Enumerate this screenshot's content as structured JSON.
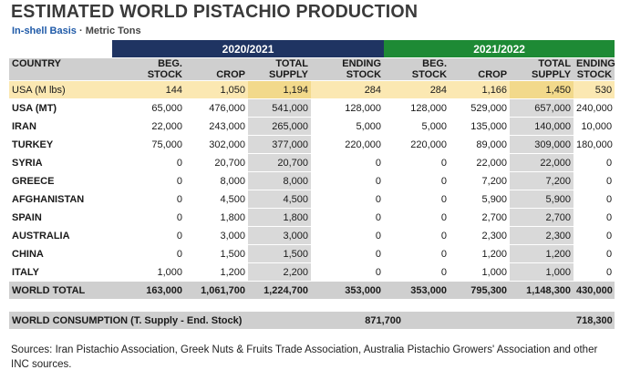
{
  "title": "ESTIMATED WORLD PISTACHIO PRODUCTION",
  "subtitle_basis": "In-shell Basis",
  "subtitle_sep": " · ",
  "subtitle_units": "Metric Tons",
  "year1": "2020/2021",
  "year2": "2021/2022",
  "headers": {
    "country": "COUNTRY",
    "beg_stock": [
      "BEG.",
      "STOCK"
    ],
    "crop": "CROP",
    "total_supply": [
      "TOTAL",
      "SUPPLY"
    ],
    "ending_stock": [
      "ENDING",
      "STOCK"
    ]
  },
  "rows": [
    {
      "country": "USA (M lbs)",
      "v": [
        "144",
        "1,050",
        "1,194",
        "284",
        "284",
        "1,166",
        "1,450",
        "530"
      ]
    },
    {
      "country": "USA (MT)",
      "v": [
        "65,000",
        "476,000",
        "541,000",
        "128,000",
        "128,000",
        "529,000",
        "657,000",
        "240,000"
      ]
    },
    {
      "country": "IRAN",
      "v": [
        "22,000",
        "243,000",
        "265,000",
        "5,000",
        "5,000",
        "135,000",
        "140,000",
        "10,000"
      ]
    },
    {
      "country": "TURKEY",
      "v": [
        "75,000",
        "302,000",
        "377,000",
        "220,000",
        "220,000",
        "89,000",
        "309,000",
        "180,000"
      ]
    },
    {
      "country": "SYRIA",
      "v": [
        "0",
        "20,700",
        "20,700",
        "0",
        "0",
        "22,000",
        "22,000",
        "0"
      ]
    },
    {
      "country": "GREECE",
      "v": [
        "0",
        "8,000",
        "8,000",
        "0",
        "0",
        "7,200",
        "7,200",
        "0"
      ]
    },
    {
      "country": "AFGHANISTAN",
      "v": [
        "0",
        "4,500",
        "4,500",
        "0",
        "0",
        "5,900",
        "5,900",
        "0"
      ]
    },
    {
      "country": "SPAIN",
      "v": [
        "0",
        "1,800",
        "1,800",
        "0",
        "0",
        "2,700",
        "2,700",
        "0"
      ]
    },
    {
      "country": "AUSTRALIA",
      "v": [
        "0",
        "3,000",
        "3,000",
        "0",
        "0",
        "2,300",
        "2,300",
        "0"
      ]
    },
    {
      "country": "CHINA",
      "v": [
        "0",
        "1,500",
        "1,500",
        "0",
        "0",
        "1,200",
        "1,200",
        "0"
      ]
    },
    {
      "country": "ITALY",
      "v": [
        "1,000",
        "1,200",
        "2,200",
        "0",
        "0",
        "1,000",
        "1,000",
        "0"
      ]
    }
  ],
  "total": {
    "country": "WORLD TOTAL",
    "v": [
      "163,000",
      "1,061,700",
      "1,224,700",
      "353,000",
      "353,000",
      "795,300",
      "1,148,300",
      "430,000"
    ]
  },
  "consumption": {
    "label": "WORLD CONSUMPTION (T. Supply - End. Stock)",
    "value_2020": "871,700",
    "value_2021": "718,300"
  },
  "sources": "Sources: Iran Pistachio Association, Greek Nuts & Fruits Trade Association, Australia Pistachio Growers' Association and other INC sources.",
  "colors": {
    "year1_bg": "#1f3462",
    "year2_bg": "#1e8a35",
    "title": "#3a3a3a",
    "subtitle_blue": "#1f5aa8"
  }
}
